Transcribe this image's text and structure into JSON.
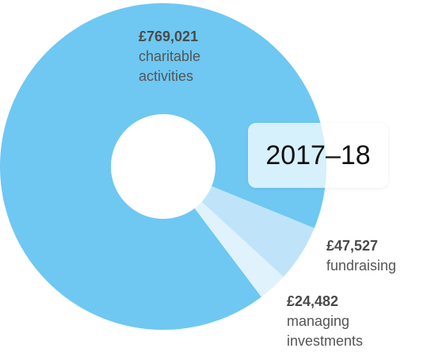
{
  "chart_data": {
    "type": "donut",
    "title": "2017–18",
    "categories": [
      "charitable activities",
      "fundraising",
      "managing investments"
    ],
    "values": [
      769021,
      47527,
      24482
    ],
    "value_labels": [
      "£769,021",
      "£47,527",
      "£24,482"
    ],
    "colors": [
      "#6ec8f2",
      "#bfe4f9",
      "#e0f2fc"
    ]
  }
}
